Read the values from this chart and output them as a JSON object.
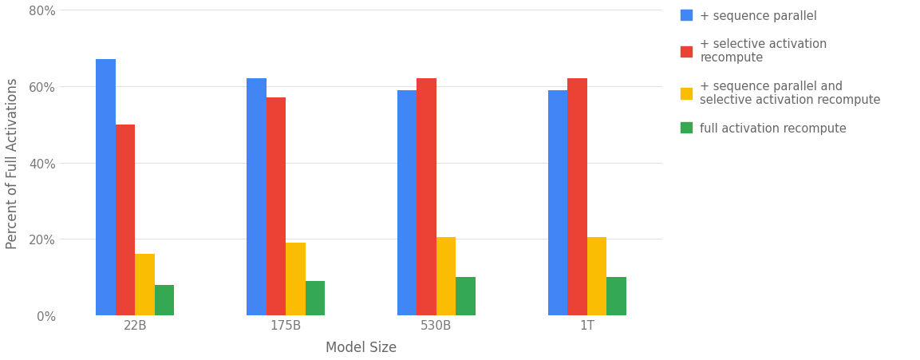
{
  "categories": [
    "22B",
    "175B",
    "530B",
    "1T"
  ],
  "series": [
    {
      "label": "+ sequence parallel",
      "color": "#4285F4",
      "values": [
        0.67,
        0.62,
        0.59,
        0.59
      ]
    },
    {
      "label": "+ selective activation\nrecompute",
      "color": "#EA4335",
      "values": [
        0.5,
        0.57,
        0.62,
        0.62
      ]
    },
    {
      "label": "+ sequence parallel and\nselective activation recompute",
      "color": "#FBBC04",
      "values": [
        0.16,
        0.19,
        0.205,
        0.205
      ]
    },
    {
      "label": "full activation recompute",
      "color": "#34A853",
      "values": [
        0.08,
        0.09,
        0.1,
        0.1
      ]
    }
  ],
  "ylabel": "Percent of Full Activations",
  "xlabel": "Model Size",
  "ylim": [
    0,
    0.8
  ],
  "yticks": [
    0,
    0.2,
    0.4,
    0.6,
    0.8
  ],
  "ytick_labels": [
    "0%",
    "20%",
    "40%",
    "60%",
    "80%"
  ],
  "background_color": "#ffffff",
  "grid_color": "#e0e0e0",
  "bar_width": 0.13,
  "legend_fontsize": 10.5,
  "axis_label_fontsize": 12,
  "tick_fontsize": 11
}
